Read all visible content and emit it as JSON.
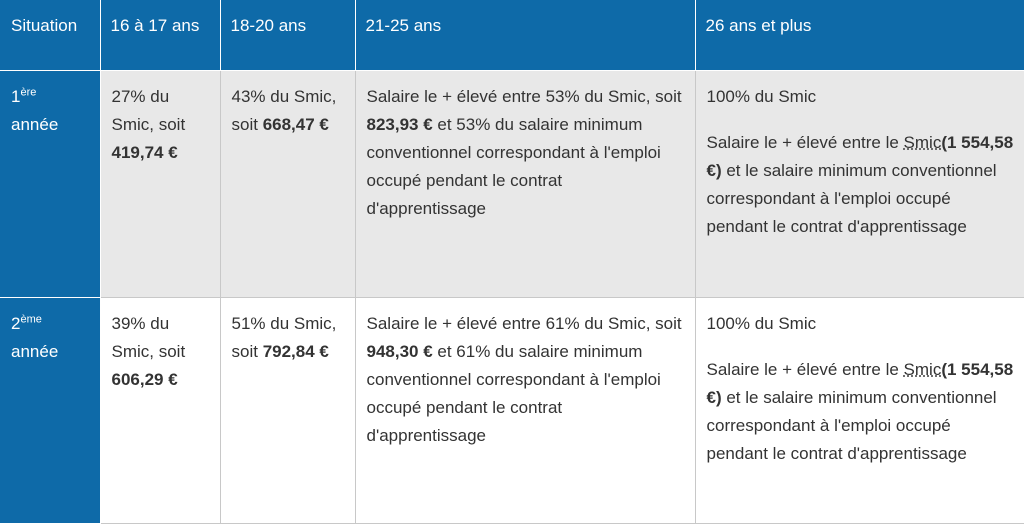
{
  "headers": {
    "situation": "Situation",
    "age_16_17": "16 à 17 ans",
    "age_18_20": "18-20 ans",
    "age_21_25": "21-25 ans",
    "age_26_plus": "26 ans et plus"
  },
  "rows": [
    {
      "year_number": "1",
      "year_suffix": "ère",
      "year_word": "année",
      "age_16_17": {
        "text": "27% du Smic, soit ",
        "amount": "419,74 €"
      },
      "age_18_20": {
        "text": "43% du Smic, soit ",
        "amount": "668,47 €"
      },
      "age_21_25": {
        "before": "Salaire le + élevé entre 53% du Smic, soit ",
        "amount": "823,93 €",
        "after": " et 53% du salaire minimum conventionnel correspondant à l'emploi occupé pendant le contrat d'apprentissage"
      },
      "age_26_plus": {
        "line1": "100% du Smic",
        "before": "Salaire le + élevé entre le ",
        "abbr": "Smic",
        "amount": "(1 554,58 €)",
        "after": " et le salaire minimum conventionnel correspondant à l'emploi occupé pendant le contrat d'apprentissage"
      }
    },
    {
      "year_number": "2",
      "year_suffix": "ème",
      "year_word": "année",
      "age_16_17": {
        "text": "39% du Smic, soit ",
        "amount": "606,29 €"
      },
      "age_18_20": {
        "text": "51% du Smic, soit ",
        "amount": "792,84 €"
      },
      "age_21_25": {
        "before": "Salaire le + élevé entre 61% du Smic, soit ",
        "amount": "948,30 €",
        "after": " et 61% du salaire minimum conventionnel correspondant à l'emploi occupé pendant le contrat d'apprentissage"
      },
      "age_26_plus": {
        "line1": "100% du Smic",
        "before": "Salaire le + élevé entre le ",
        "abbr": "Smic",
        "amount": "(1 554,58 €)",
        "after": " et le salaire minimum conventionnel correspondant à l'emploi occupé pendant le contrat d'apprentissage"
      }
    }
  ]
}
